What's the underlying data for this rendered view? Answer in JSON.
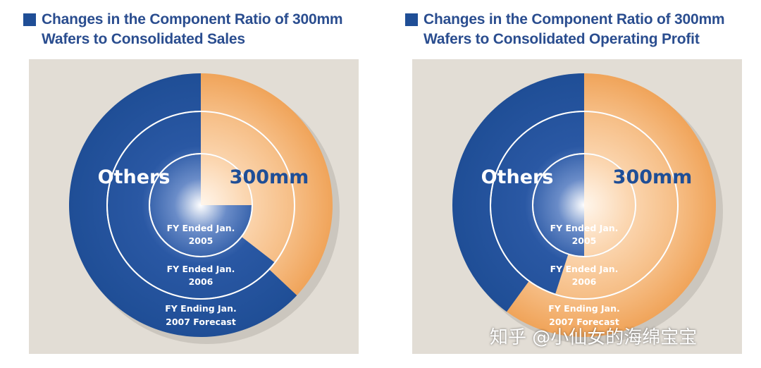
{
  "chart_data": [
    {
      "type": "pie",
      "subtype": "concentric-donut",
      "title_lines": [
        "Changes in the Component Ratio of 300mm",
        "Wafers to Consolidated Sales"
      ],
      "labels": {
        "others": "Others",
        "main": "300mm"
      },
      "rings": [
        {
          "label_lines": [
            "FY Ended Jan.",
            "2005"
          ],
          "share_300mm": 0.25
        },
        {
          "label_lines": [
            "FY Ended Jan.",
            "2006"
          ],
          "share_300mm": 0.355
        },
        {
          "label_lines": [
            "FY Ending Jan.",
            "2007 Forecast"
          ],
          "share_300mm": 0.37
        }
      ],
      "colors": {
        "others": "#1f4e96",
        "main": "#f0a45a"
      }
    },
    {
      "type": "pie",
      "subtype": "concentric-donut",
      "title_lines": [
        "Changes in the Component Ratio of 300mm",
        "Wafers to Consolidated Operating Profit"
      ],
      "labels": {
        "others": "Others",
        "main": "300mm"
      },
      "rings": [
        {
          "label_lines": [
            "FY Ended Jan.",
            "2005"
          ],
          "share_300mm": 0.5
        },
        {
          "label_lines": [
            "FY Ended Jan.",
            "2006"
          ],
          "share_300mm": 0.55
        },
        {
          "label_lines": [
            "FY Ending Jan.",
            "2007 Forecast"
          ],
          "share_300mm": 0.6
        }
      ],
      "colors": {
        "others": "#1f4e96",
        "main": "#f0a45a"
      }
    }
  ],
  "watermark": "知乎 @小仙女的海绵宝宝"
}
